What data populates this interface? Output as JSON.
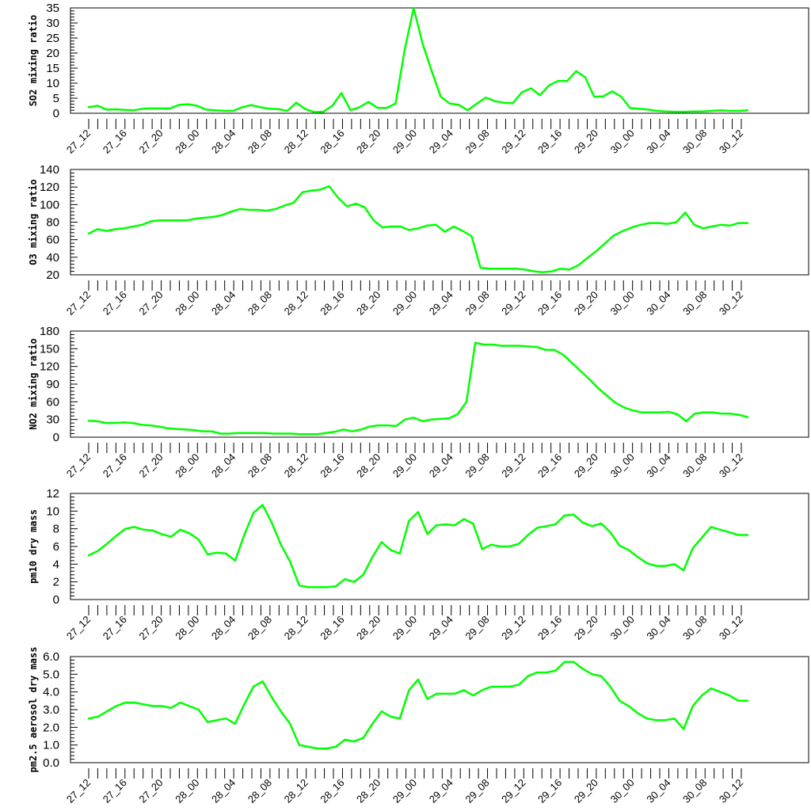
{
  "chart_data": [
    {
      "type": "line",
      "ylabel": "SO2 mixing ratio",
      "ylim": [
        0,
        35
      ],
      "yticks": [
        0,
        5,
        10,
        15,
        20,
        25,
        30,
        35
      ],
      "ytick_labels": [
        "0",
        "5",
        "10",
        "15",
        "20",
        "25",
        "30",
        "35"
      ],
      "x_tick_labels": [
        "27_12",
        "27_16",
        "27_20",
        "28_00",
        "28_04",
        "28_08",
        "28_12",
        "28_16",
        "28_20",
        "29_00",
        "29_04",
        "29_08",
        "29_12",
        "29_16",
        "29_20",
        "30_00",
        "30_04",
        "30_08",
        "30_12"
      ],
      "color": "#00ff00",
      "values": [
        2.0,
        2.5,
        1.2,
        1.3,
        1.1,
        1.0,
        1.5,
        1.6,
        1.6,
        1.6,
        2.8,
        3.0,
        2.5,
        1.2,
        1.0,
        0.8,
        0.8,
        2.0,
        2.7,
        2.0,
        1.5,
        1.4,
        0.8,
        3.5,
        1.4,
        0.4,
        0.5,
        2.5,
        6.7,
        1.0,
        2.0,
        3.8,
        1.8,
        1.8,
        3.2,
        21.0,
        35.0,
        23.0,
        14.0,
        5.5,
        3.2,
        2.8,
        1.0,
        3.2,
        5.2,
        4.0,
        3.5,
        3.4,
        7.0,
        8.3,
        6.0,
        9.3,
        10.7,
        10.7,
        14.0,
        12.0,
        5.5,
        5.6,
        7.3,
        5.5,
        1.7,
        1.5,
        1.2,
        0.8,
        0.6,
        0.5,
        0.5,
        0.6,
        0.6,
        0.8,
        1.0,
        0.8,
        0.8,
        1.0
      ]
    },
    {
      "type": "line",
      "ylabel": "O3 mixing ratio",
      "ylim": [
        20,
        140
      ],
      "yticks": [
        20,
        40,
        60,
        80,
        100,
        120,
        140
      ],
      "ytick_labels": [
        "20",
        "40",
        "60",
        "80",
        "100",
        "120",
        "140"
      ],
      "x_tick_labels": [
        "27_12",
        "27_16",
        "27_20",
        "28_00",
        "28_04",
        "28_08",
        "28_12",
        "28_16",
        "28_20",
        "29_00",
        "29_04",
        "29_08",
        "29_12",
        "29_16",
        "29_20",
        "30_00",
        "30_04",
        "30_08",
        "30_12"
      ],
      "color": "#00ff00",
      "values": [
        67,
        72,
        70,
        72,
        73,
        75,
        77,
        81,
        82,
        82,
        82,
        82,
        84,
        85,
        86,
        88,
        92,
        95,
        94,
        94,
        93,
        95,
        99,
        102,
        114,
        116,
        117,
        121,
        108,
        98,
        101,
        97,
        82,
        74,
        75,
        75,
        71,
        73,
        76,
        77,
        69,
        75,
        70,
        64,
        28,
        27,
        27,
        27,
        27,
        26,
        24,
        23,
        24,
        27,
        26,
        31,
        39,
        47,
        56,
        65,
        70,
        74,
        77,
        79,
        79,
        78,
        80,
        91,
        77,
        73,
        75,
        77,
        76,
        79,
        79
      ]
    },
    {
      "type": "line",
      "ylabel": "NO2 mixing ratio",
      "ylim": [
        0,
        180
      ],
      "yticks": [
        0,
        30,
        60,
        90,
        120,
        150,
        180
      ],
      "ytick_labels": [
        "0",
        "30",
        "60",
        "90",
        "120",
        "150",
        "180"
      ],
      "x_tick_labels": [
        "27_12",
        "27_16",
        "27_20",
        "28_00",
        "28_04",
        "28_08",
        "28_12",
        "28_16",
        "28_20",
        "29_00",
        "29_04",
        "29_08",
        "29_12",
        "29_16",
        "29_20",
        "30_00",
        "30_04",
        "30_08",
        "30_12"
      ],
      "color": "#00ff00",
      "values": [
        28,
        27,
        24,
        24,
        25,
        24,
        21,
        20,
        18,
        15,
        14,
        13,
        12,
        10,
        10,
        6,
        6,
        7,
        7,
        7,
        7,
        6,
        6,
        6,
        5,
        5,
        5,
        7,
        9,
        13,
        10,
        13,
        18,
        20,
        20,
        19,
        30,
        33,
        27,
        30,
        31,
        32,
        39,
        60,
        160,
        157,
        157,
        155,
        155,
        155,
        154,
        153,
        148,
        148,
        140,
        126,
        112,
        98,
        83,
        70,
        58,
        50,
        45,
        42,
        42,
        42,
        43,
        39,
        27,
        40,
        42,
        42,
        40,
        40,
        38,
        34
      ]
    },
    {
      "type": "line",
      "ylabel": "pm10 dry mass",
      "ylim": [
        0,
        12
      ],
      "yticks": [
        0,
        2,
        4,
        6,
        8,
        10,
        12
      ],
      "ytick_labels": [
        "0",
        "2",
        "4",
        "6",
        "8",
        "10",
        "12"
      ],
      "x_tick_labels": [
        "27_12",
        "27_16",
        "27_20",
        "28_00",
        "28_04",
        "28_08",
        "28_12",
        "28_16",
        "28_20",
        "29_00",
        "29_04",
        "29_08",
        "29_12",
        "29_16",
        "29_20",
        "30_00",
        "30_04",
        "30_08",
        "30_12"
      ],
      "color": "#00ff00",
      "values": [
        5.0,
        5.5,
        6.3,
        7.2,
        8.0,
        8.2,
        7.9,
        7.8,
        7.4,
        7.1,
        7.9,
        7.5,
        6.8,
        5.1,
        5.3,
        5.2,
        4.4,
        7.3,
        9.8,
        10.7,
        8.7,
        6.2,
        4.3,
        1.6,
        1.4,
        1.4,
        1.4,
        1.5,
        2.3,
        2.0,
        2.8,
        4.8,
        6.5,
        5.6,
        5.2,
        8.9,
        9.9,
        7.4,
        8.4,
        8.5,
        8.4,
        9.1,
        8.6,
        5.7,
        6.2,
        6.0,
        6.0,
        6.3,
        7.3,
        8.1,
        8.3,
        8.5,
        9.5,
        9.6,
        8.7,
        8.3,
        8.6,
        7.6,
        6.1,
        5.6,
        4.8,
        4.1,
        3.8,
        3.8,
        4.0,
        3.3,
        5.8,
        7.0,
        8.2,
        7.9,
        7.6,
        7.3,
        7.3
      ]
    },
    {
      "type": "line",
      "ylabel": "pm2.5 aerosol dry mass",
      "ylim": [
        0,
        6
      ],
      "yticks": [
        0,
        1,
        2,
        3,
        4,
        5,
        6
      ],
      "ytick_labels": [
        "0.0",
        "1.0",
        "2.0",
        "3.0",
        "4.0",
        "5.0",
        "6.0"
      ],
      "x_tick_labels": [
        "27_12",
        "27_16",
        "27_20",
        "28_00",
        "28_04",
        "28_08",
        "28_12",
        "28_16",
        "28_20",
        "29_00",
        "29_04",
        "29_08",
        "29_12",
        "29_16",
        "29_20",
        "30_00",
        "30_04",
        "30_08",
        "30_12"
      ],
      "color": "#00ff00",
      "values": [
        2.5,
        2.6,
        2.9,
        3.2,
        3.4,
        3.4,
        3.3,
        3.2,
        3.2,
        3.1,
        3.4,
        3.2,
        3.0,
        2.3,
        2.4,
        2.5,
        2.2,
        3.3,
        4.3,
        4.6,
        3.7,
        2.9,
        2.2,
        1.0,
        0.9,
        0.8,
        0.8,
        0.9,
        1.3,
        1.2,
        1.4,
        2.2,
        2.9,
        2.6,
        2.5,
        4.1,
        4.7,
        3.6,
        3.9,
        3.9,
        3.9,
        4.1,
        3.8,
        4.1,
        4.3,
        4.3,
        4.3,
        4.4,
        4.9,
        5.1,
        5.1,
        5.2,
        5.7,
        5.7,
        5.3,
        5.0,
        4.9,
        4.3,
        3.5,
        3.2,
        2.8,
        2.5,
        2.4,
        2.4,
        2.5,
        1.9,
        3.2,
        3.8,
        4.2,
        4.0,
        3.8,
        3.5,
        3.5
      ]
    }
  ]
}
